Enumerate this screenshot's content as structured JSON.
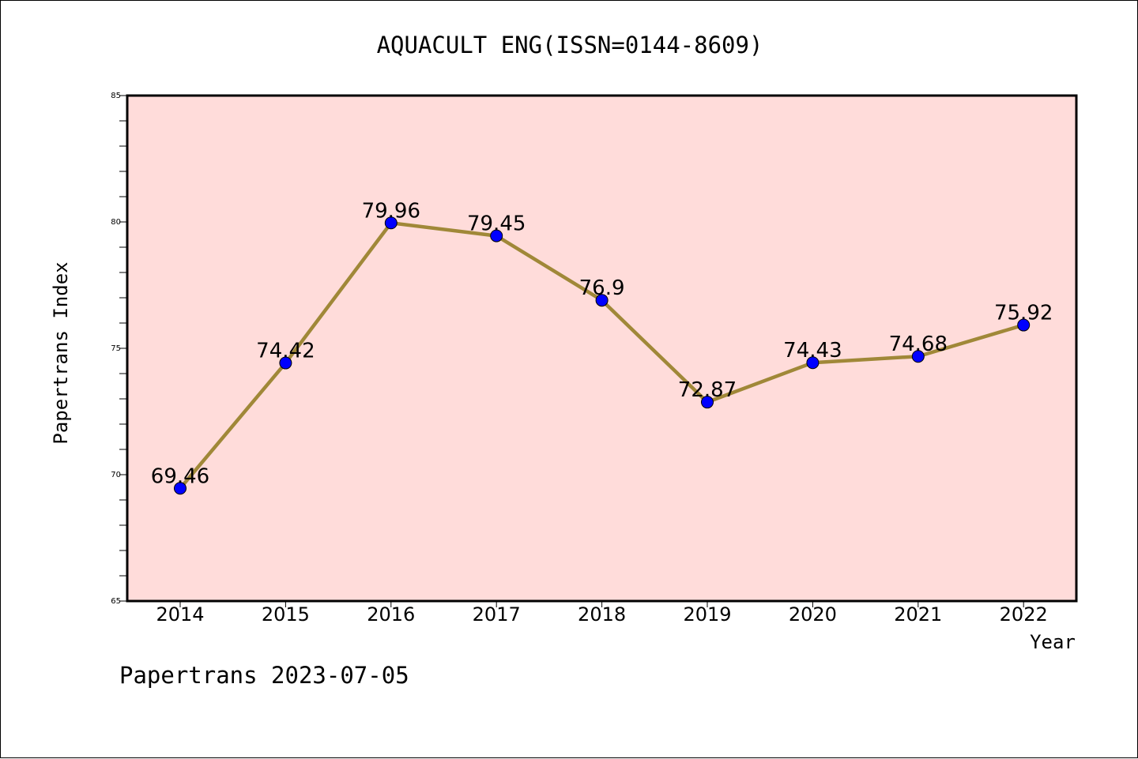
{
  "footer": "Papertrans 2023-07-05",
  "chart_data": {
    "type": "line",
    "title": "AQUACULT ENG(ISSN=0144-8609)",
    "xlabel": "Year",
    "ylabel": "Papertrans Index",
    "categories": [
      "2014",
      "2015",
      "2016",
      "2017",
      "2018",
      "2019",
      "2020",
      "2021",
      "2022"
    ],
    "values": [
      69.46,
      74.42,
      79.96,
      79.45,
      76.9,
      72.87,
      74.43,
      74.68,
      75.92
    ],
    "data_labels": [
      "69.46",
      "74.42",
      "79.96",
      "79.45",
      "76.9",
      "72.87",
      "74.43",
      "74.68",
      "75.92"
    ],
    "ylim": [
      65,
      85
    ],
    "yticks": [
      "65",
      "70",
      "75",
      "80",
      "85"
    ],
    "grid": false,
    "legend": "none",
    "colors": {
      "plot_background": "#ffdcda",
      "line": "#a08838",
      "marker": "#0000ff"
    }
  }
}
